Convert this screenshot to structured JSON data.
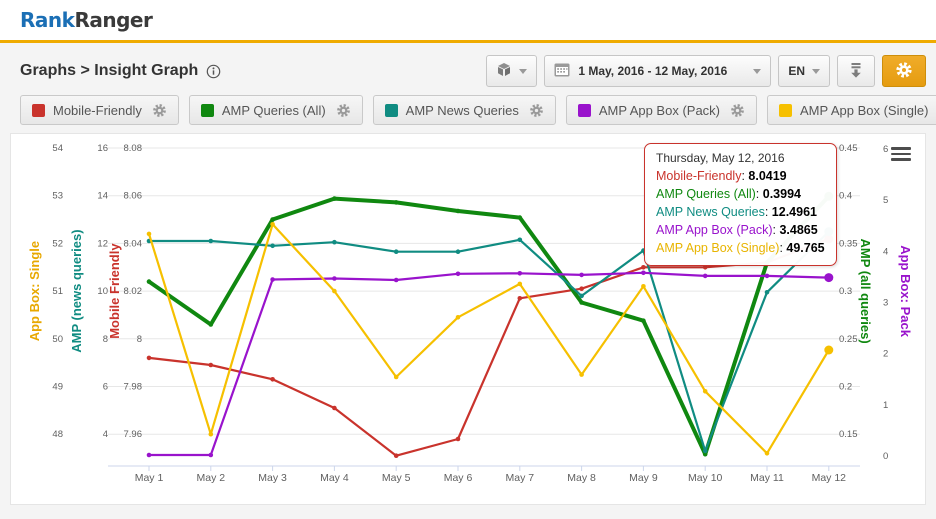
{
  "header": {
    "logo_rank": "Rank",
    "logo_ranger": "Ranger"
  },
  "breadcrumb": {
    "text": "Graphs > Insight Graph",
    "info_icon": "info-icon"
  },
  "toolbar": {
    "widget_button": {
      "icon": "cube-icon"
    },
    "date_range": {
      "icon": "calendar-icon",
      "label": "1 May, 2016 - 12 May, 2016"
    },
    "language": {
      "label": "EN"
    },
    "download_button": {
      "icon": "download-icon"
    },
    "settings_button": {
      "icon": "gear-icon"
    }
  },
  "legend": [
    {
      "label": "Mobile-Friendly",
      "color": "#c9332c",
      "settings_icon": "gear-icon"
    },
    {
      "label": "AMP Queries (All)",
      "color": "#108810",
      "settings_icon": "gear-icon"
    },
    {
      "label": "AMP News Queries",
      "color": "#108c82",
      "settings_icon": "gear-icon"
    },
    {
      "label": "AMP App Box (Pack)",
      "color": "#9913cc",
      "settings_icon": "gear-icon"
    },
    {
      "label": "AMP App Box (Single)",
      "color": "#f6c000",
      "settings_icon": "gear-icon"
    }
  ],
  "tooltip": {
    "title": "Thursday, May 12, 2016",
    "rows": [
      {
        "label": "Mobile-Friendly",
        "value": "8.0419",
        "color": "#c9332c"
      },
      {
        "label": "AMP Queries (All)",
        "value": "0.3994",
        "color": "#108810"
      },
      {
        "label": "AMP News Queries",
        "value": "12.4961",
        "color": "#108c82"
      },
      {
        "label": "AMP App Box (Pack)",
        "value": "3.4865",
        "color": "#9913cc"
      },
      {
        "label": "AMP App Box (Single)",
        "value": "49.765",
        "color": "#e8b400"
      }
    ]
  },
  "chart": {
    "context_menu_icon": "hamburger-icon"
  },
  "chart_data": {
    "type": "line",
    "categories": [
      "May 1",
      "May 2",
      "May 3",
      "May 4",
      "May 5",
      "May 6",
      "May 7",
      "May 8",
      "May 9",
      "May 10",
      "May 11",
      "May 12"
    ],
    "series": [
      {
        "name": "Mobile-Friendly",
        "color": "#c9332c",
        "axis": "mobile_friendly",
        "thick": false,
        "values": [
          7.992,
          7.989,
          7.983,
          7.971,
          7.951,
          7.958,
          8.017,
          8.021,
          8.03,
          8.03,
          8.032,
          8.0419
        ]
      },
      {
        "name": "AMP Queries (All)",
        "color": "#108810",
        "axis": "amp_all",
        "thick": true,
        "values": [
          0.31,
          0.265,
          0.375,
          0.397,
          0.393,
          0.384,
          0.377,
          0.288,
          0.269,
          0.129,
          0.33,
          0.3994
        ]
      },
      {
        "name": "AMP News Queries",
        "color": "#108c82",
        "axis": "amp_news",
        "thick": false,
        "values": [
          12.1,
          12.1,
          11.9,
          12.05,
          11.65,
          11.65,
          12.15,
          9.8,
          11.7,
          3.3,
          9.95,
          12.4961
        ]
      },
      {
        "name": "AMP App Box (Pack)",
        "color": "#9913cc",
        "axis": "app_box_pack",
        "thick": false,
        "values": [
          0.02,
          0.02,
          3.45,
          3.47,
          3.44,
          3.56,
          3.57,
          3.54,
          3.58,
          3.52,
          3.52,
          3.4865
        ]
      },
      {
        "name": "AMP App Box (Single)",
        "color": "#f6c000",
        "axis": "app_box_single",
        "thick": false,
        "values": [
          52.2,
          48.0,
          52.4,
          51.0,
          49.2,
          50.45,
          51.15,
          49.25,
          51.1,
          48.9,
          47.6,
          49.765
        ]
      }
    ],
    "axes": {
      "left": [
        {
          "id": "app_box_single",
          "title": "App Box: Single",
          "color": "#e8a800",
          "ticks": [
            "54",
            "53",
            "52",
            "51",
            "50",
            "49",
            "48"
          ]
        },
        {
          "id": "amp_news",
          "title": "AMP (news queries)",
          "color": "#108c82",
          "ticks": [
            "16",
            "14",
            "12",
            "10",
            "8",
            "6",
            "4"
          ]
        },
        {
          "id": "mobile_friendly",
          "title": "Mobile Friendly",
          "color": "#c9332c",
          "ticks": [
            "8.08",
            "8.06",
            "8.04",
            "8.02",
            "8",
            "7.98",
            "7.96"
          ]
        }
      ],
      "right": [
        {
          "id": "amp_all",
          "title": "AMP (all queries)",
          "color": "#108810",
          "ticks": [
            "0.45",
            "0.4",
            "0.35",
            "0.3",
            "0.25",
            "0.2",
            "0.15"
          ]
        },
        {
          "id": "app_box_pack",
          "title": "App Box: Pack",
          "color": "#9913cc",
          "ticks": [
            "6",
            "5",
            "4",
            "3",
            "2",
            "1",
            "0"
          ],
          "full_extent": true
        }
      ]
    },
    "title": "",
    "xlabel": "",
    "ylabel": "",
    "grid": true,
    "legend_position": "top"
  }
}
